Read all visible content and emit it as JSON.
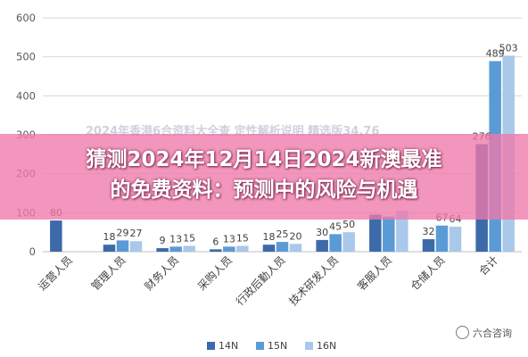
{
  "chart_data": {
    "type": "bar",
    "categories": [
      "运营人员",
      "管理人员",
      "财务人员",
      "采购人员",
      "行政后勤人员",
      "技术研发人员",
      "客服人员",
      "仓储人员",
      "合计"
    ],
    "series": [
      {
        "name": "14N",
        "color": "#3d6aa8",
        "values": [
          80,
          18,
          9,
          6,
          18,
          30,
          95,
          32,
          276
        ]
      },
      {
        "name": "15N",
        "color": "#5b9bd5",
        "values": [
          null,
          29,
          13,
          13,
          25,
          45,
          90,
          67,
          489
        ]
      },
      {
        "name": "16N",
        "color": "#a9c8ea",
        "values": [
          null,
          27,
          15,
          15,
          20,
          50,
          105,
          64,
          503
        ]
      }
    ],
    "data_labels": [
      [
        "80",
        "",
        ""
      ],
      [
        "18",
        "29",
        "27"
      ],
      [
        "9",
        "13",
        "15"
      ],
      [
        "6",
        "13",
        "15"
      ],
      [
        "18",
        "25",
        "20"
      ],
      [
        "30",
        "45",
        "50"
      ],
      [
        "",
        "",
        ""
      ],
      [
        "32",
        "67",
        "64"
      ],
      [
        "276",
        "489",
        "503"
      ]
    ],
    "y_ticks": [
      0,
      100,
      200,
      300,
      400,
      500,
      600
    ],
    "ylim": [
      0,
      600
    ],
    "legend_position": "bottom",
    "grid": true
  },
  "overlay": {
    "line1": "猜测2024年12月14日2024新澳最准",
    "line2": "的免费资料：预测中的风险与机遇",
    "ghost_text": "2024年香港6合资料大全查 定性解析说明 精选版34.76"
  },
  "watermark": {
    "text": "六合咨询"
  }
}
